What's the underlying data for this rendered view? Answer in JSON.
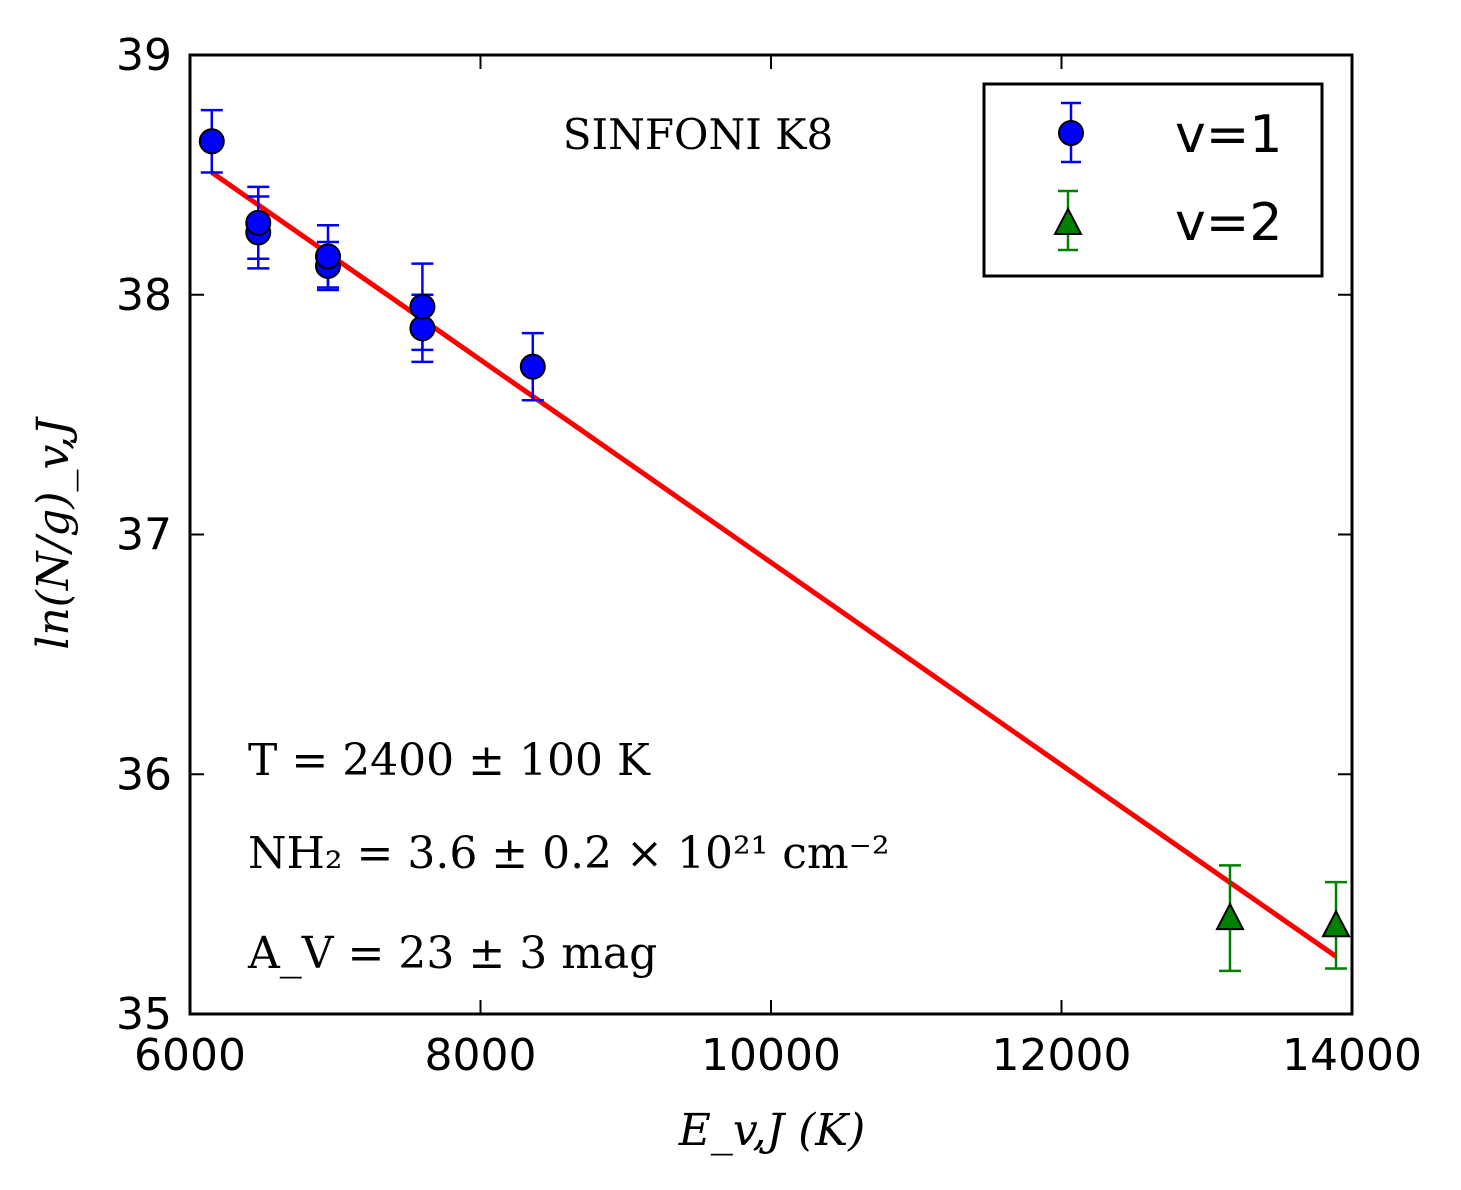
{
  "chart_data": {
    "type": "scatter",
    "title": "SINFONI K8",
    "xlabel": "E_v,J (K)",
    "ylabel": "ln(N/g)_v,J",
    "xlim": [
      6000,
      14000
    ],
    "ylim": [
      35,
      39
    ],
    "xticks": [
      6000,
      8000,
      10000,
      12000,
      14000
    ],
    "yticks": [
      35,
      36,
      37,
      38,
      39
    ],
    "series": [
      {
        "name": "v=1",
        "marker": "circle",
        "color": "#0000ff",
        "points": [
          {
            "x": 6150,
            "y": 38.64,
            "err": 0.13
          },
          {
            "x": 6470,
            "y": 38.26,
            "err": 0.15
          },
          {
            "x": 6470,
            "y": 38.3,
            "err": 0.15
          },
          {
            "x": 6950,
            "y": 38.12,
            "err": 0.1
          },
          {
            "x": 6950,
            "y": 38.16,
            "err": 0.13
          },
          {
            "x": 7600,
            "y": 37.86,
            "err": 0.14
          },
          {
            "x": 7600,
            "y": 37.95,
            "err": 0.18
          },
          {
            "x": 8360,
            "y": 37.7,
            "err": 0.14
          }
        ]
      },
      {
        "name": "v=2",
        "marker": "triangle",
        "color": "#008000",
        "points": [
          {
            "x": 13160,
            "y": 35.4,
            "err": 0.22
          },
          {
            "x": 13890,
            "y": 35.37,
            "err": 0.18
          }
        ]
      }
    ],
    "fit_line": {
      "color": "#ff0000",
      "x": [
        6150,
        13890
      ],
      "y": [
        38.51,
        35.24
      ]
    },
    "annotations": [
      "T = 2400 ± 100 K",
      "NH₂ = 3.6 ± 0.2 × 10²¹ cm⁻²",
      "A_V = 23 ± 3 mag"
    ],
    "legend_position": "top-right"
  }
}
